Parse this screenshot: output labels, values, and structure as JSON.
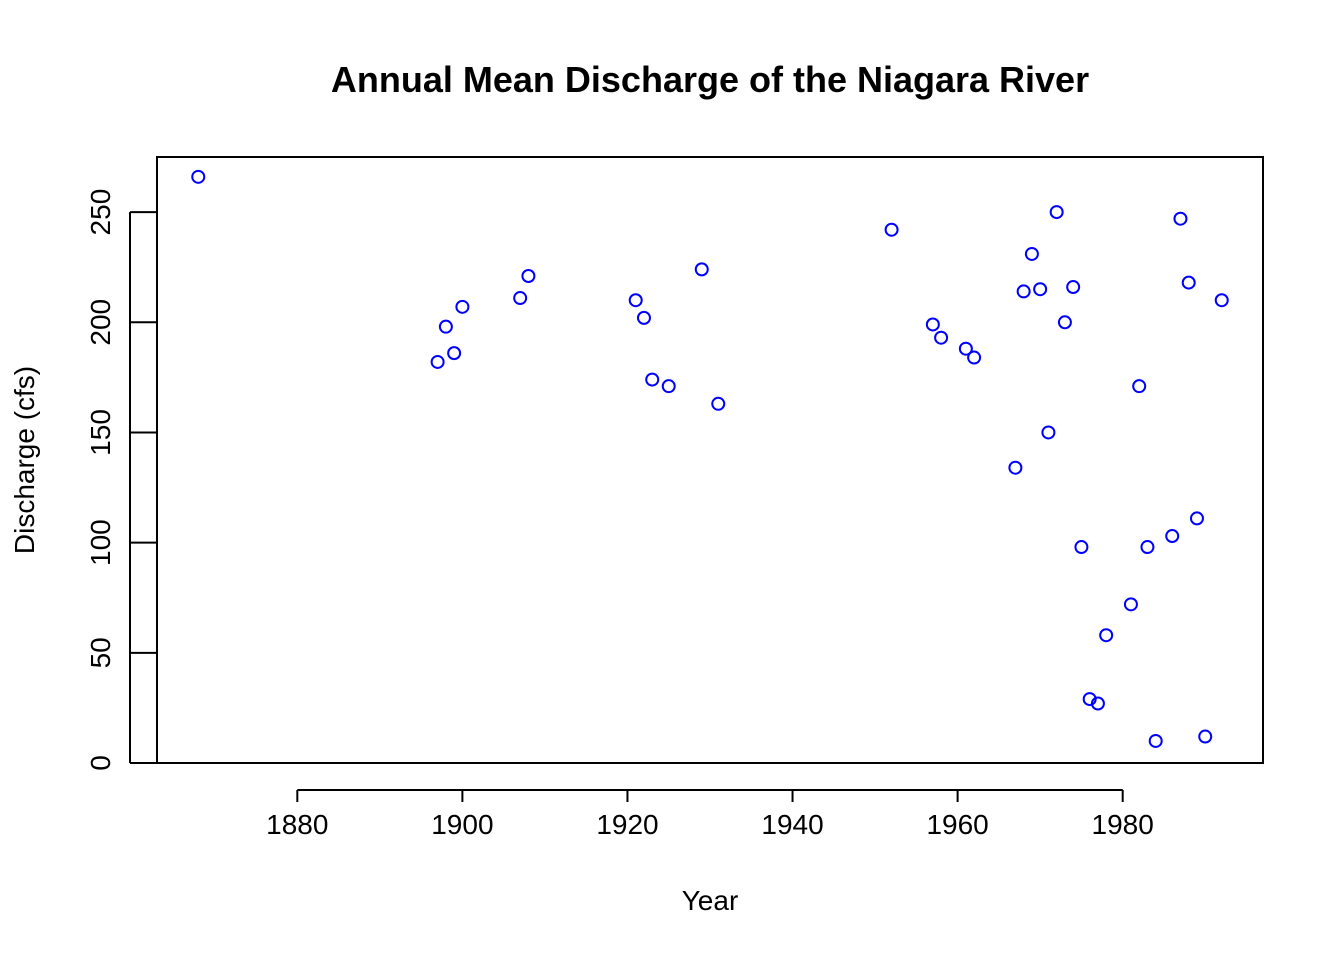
{
  "chart_data": {
    "type": "scatter",
    "title": "Annual Mean Discharge of the Niagara River",
    "xlabel": "Year",
    "ylabel": "Discharge (cfs)",
    "xlim": [
      1863,
      1997
    ],
    "ylim": [
      0,
      275
    ],
    "xticks": [
      1880,
      1900,
      1920,
      1940,
      1960,
      1980
    ],
    "yticks": [
      0,
      50,
      100,
      150,
      200,
      250
    ],
    "point_color": "#0000FF",
    "marker": "open-circle",
    "grid": false,
    "legend": "none",
    "points": [
      {
        "x": 1868,
        "y": 266
      },
      {
        "x": 1897,
        "y": 182
      },
      {
        "x": 1898,
        "y": 198
      },
      {
        "x": 1899,
        "y": 186
      },
      {
        "x": 1900,
        "y": 207
      },
      {
        "x": 1907,
        "y": 211
      },
      {
        "x": 1908,
        "y": 221
      },
      {
        "x": 1921,
        "y": 210
      },
      {
        "x": 1922,
        "y": 202
      },
      {
        "x": 1923,
        "y": 174
      },
      {
        "x": 1925,
        "y": 171
      },
      {
        "x": 1929,
        "y": 224
      },
      {
        "x": 1931,
        "y": 163
      },
      {
        "x": 1952,
        "y": 242
      },
      {
        "x": 1957,
        "y": 199
      },
      {
        "x": 1958,
        "y": 193
      },
      {
        "x": 1961,
        "y": 188
      },
      {
        "x": 1962,
        "y": 184
      },
      {
        "x": 1967,
        "y": 134
      },
      {
        "x": 1968,
        "y": 214
      },
      {
        "x": 1969,
        "y": 231
      },
      {
        "x": 1970,
        "y": 215
      },
      {
        "x": 1971,
        "y": 150
      },
      {
        "x": 1972,
        "y": 250
      },
      {
        "x": 1973,
        "y": 200
      },
      {
        "x": 1974,
        "y": 216
      },
      {
        "x": 1975,
        "y": 98
      },
      {
        "x": 1976,
        "y": 29
      },
      {
        "x": 1977,
        "y": 27
      },
      {
        "x": 1978,
        "y": 58
      },
      {
        "x": 1981,
        "y": 72
      },
      {
        "x": 1982,
        "y": 171
      },
      {
        "x": 1983,
        "y": 98
      },
      {
        "x": 1984,
        "y": 10
      },
      {
        "x": 1986,
        "y": 103
      },
      {
        "x": 1987,
        "y": 247
      },
      {
        "x": 1988,
        "y": 218
      },
      {
        "x": 1989,
        "y": 111
      },
      {
        "x": 1990,
        "y": 12
      },
      {
        "x": 1992,
        "y": 210
      }
    ]
  }
}
